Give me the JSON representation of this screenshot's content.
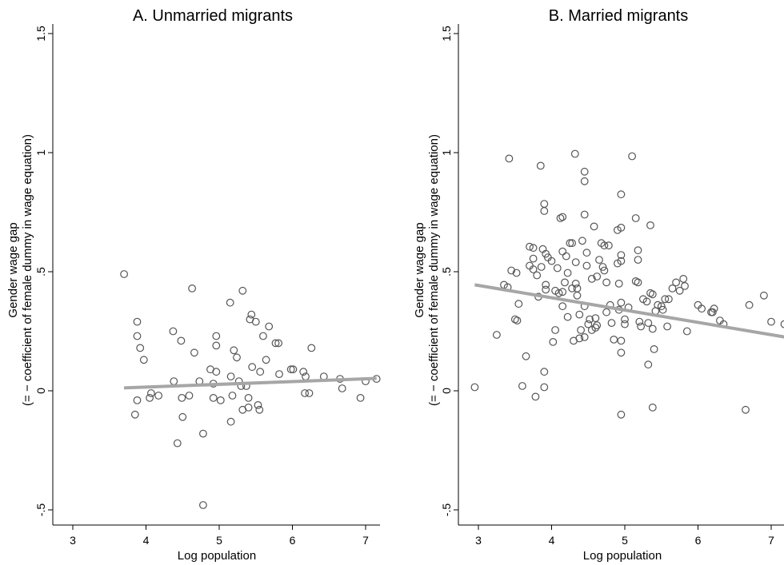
{
  "chart_data": [
    {
      "type": "scatter",
      "title": "A. Unmarried migrants",
      "xlabel": "Log population",
      "ylabel_line1": "Gender wage gap",
      "ylabel_line2": "(= − coefficient of female dummy in wage equation)",
      "xlim": [
        2.75,
        7.2
      ],
      "ylim": [
        -0.55,
        1.55
      ],
      "xticks": [
        3,
        4,
        5,
        6,
        7
      ],
      "yticks": [
        -0.5,
        0,
        0.5,
        1,
        1.5
      ],
      "ytick_labels": [
        "-.5",
        "0",
        ".5",
        "1",
        "1.5"
      ],
      "fit_line": {
        "x": [
          3.7,
          7.15
        ],
        "y": [
          0.012,
          0.052
        ]
      },
      "points": [
        [
          3.7,
          0.49
        ],
        [
          3.85,
          -0.1
        ],
        [
          3.88,
          0.29
        ],
        [
          3.88,
          0.23
        ],
        [
          3.92,
          0.18
        ],
        [
          3.97,
          0.13
        ],
        [
          3.88,
          -0.04
        ],
        [
          4.05,
          -0.03
        ],
        [
          4.07,
          -0.01
        ],
        [
          4.17,
          -0.02
        ],
        [
          4.37,
          0.25
        ],
        [
          4.38,
          0.04
        ],
        [
          4.43,
          -0.22
        ],
        [
          4.48,
          0.21
        ],
        [
          4.49,
          -0.03
        ],
        [
          4.5,
          -0.11
        ],
        [
          4.59,
          -0.02
        ],
        [
          4.63,
          0.43
        ],
        [
          4.66,
          0.16
        ],
        [
          4.73,
          0.04
        ],
        [
          4.78,
          -0.18
        ],
        [
          4.78,
          -0.48
        ],
        [
          4.88,
          0.09
        ],
        [
          4.92,
          0.03
        ],
        [
          4.92,
          -0.03
        ],
        [
          4.96,
          0.23
        ],
        [
          4.96,
          0.19
        ],
        [
          4.96,
          0.08
        ],
        [
          5.02,
          -0.04
        ],
        [
          5.15,
          0.37
        ],
        [
          5.16,
          0.06
        ],
        [
          5.16,
          -0.13
        ],
        [
          5.18,
          -0.02
        ],
        [
          5.2,
          0.17
        ],
        [
          5.24,
          0.14
        ],
        [
          5.27,
          0.04
        ],
        [
          5.32,
          0.42
        ],
        [
          5.3,
          0.02
        ],
        [
          5.32,
          -0.08
        ],
        [
          5.37,
          0.02
        ],
        [
          5.4,
          -0.07
        ],
        [
          5.4,
          -0.03
        ],
        [
          5.42,
          0.3
        ],
        [
          5.44,
          0.32
        ],
        [
          5.45,
          0.1
        ],
        [
          5.5,
          0.29
        ],
        [
          5.53,
          -0.06
        ],
        [
          5.55,
          -0.08
        ],
        [
          5.56,
          0.08
        ],
        [
          5.6,
          0.23
        ],
        [
          5.64,
          0.13
        ],
        [
          5.68,
          0.27
        ],
        [
          5.77,
          0.2
        ],
        [
          5.81,
          0.2
        ],
        [
          5.82,
          0.07
        ],
        [
          5.98,
          0.09
        ],
        [
          6.01,
          0.09
        ],
        [
          6.15,
          0.08
        ],
        [
          6.17,
          -0.01
        ],
        [
          6.18,
          0.06
        ],
        [
          6.23,
          -0.01
        ],
        [
          6.26,
          0.18
        ],
        [
          6.43,
          0.06
        ],
        [
          6.65,
          0.05
        ],
        [
          6.68,
          0.01
        ],
        [
          6.93,
          -0.03
        ],
        [
          7.0,
          0.04
        ],
        [
          7.15,
          0.05
        ]
      ]
    },
    {
      "type": "scatter",
      "title": "B. Married migrants",
      "xlabel": "Log population",
      "ylabel_line1": "Gender wage gap",
      "ylabel_line2": "(= − coefficient of female dummy in wage equation)",
      "xlim": [
        2.75,
        7.2
      ],
      "ylim": [
        -0.55,
        1.55
      ],
      "xticks": [
        3,
        4,
        5,
        6,
        7
      ],
      "yticks": [
        -0.5,
        0,
        0.5,
        1,
        1.5
      ],
      "ytick_labels": [
        "-.5",
        "0",
        ".5",
        "1",
        "1.5"
      ],
      "fit_line": {
        "x": [
          2.95,
          7.2
        ],
        "y": [
          0.445,
          0.225
        ]
      },
      "points": [
        [
          2.95,
          0.015
        ],
        [
          3.25,
          0.235
        ],
        [
          3.35,
          0.445
        ],
        [
          3.4,
          0.435
        ],
        [
          3.42,
          0.975
        ],
        [
          3.45,
          0.505
        ],
        [
          3.5,
          0.3
        ],
        [
          3.52,
          0.495
        ],
        [
          3.53,
          0.295
        ],
        [
          3.55,
          0.365
        ],
        [
          3.6,
          0.02
        ],
        [
          3.65,
          0.145
        ],
        [
          3.7,
          0.605
        ],
        [
          3.7,
          0.525
        ],
        [
          3.75,
          0.6
        ],
        [
          3.75,
          0.555
        ],
        [
          3.75,
          0.51
        ],
        [
          3.78,
          -0.025
        ],
        [
          3.8,
          0.485
        ],
        [
          3.82,
          0.395
        ],
        [
          3.85,
          0.945
        ],
        [
          3.86,
          0.52
        ],
        [
          3.88,
          0.595
        ],
        [
          3.9,
          0.785
        ],
        [
          3.9,
          0.755
        ],
        [
          3.92,
          0.575
        ],
        [
          3.92,
          0.445
        ],
        [
          3.92,
          0.425
        ],
        [
          3.9,
          0.08
        ],
        [
          3.9,
          0.015
        ],
        [
          3.95,
          0.56
        ],
        [
          4.0,
          0.545
        ],
        [
          4.02,
          0.205
        ],
        [
          4.05,
          0.42
        ],
        [
          4.05,
          0.255
        ],
        [
          4.08,
          0.515
        ],
        [
          4.1,
          0.41
        ],
        [
          4.12,
          0.725
        ],
        [
          4.15,
          0.73
        ],
        [
          4.15,
          0.585
        ],
        [
          4.15,
          0.415
        ],
        [
          4.15,
          0.355
        ],
        [
          4.18,
          0.455
        ],
        [
          4.2,
          0.565
        ],
        [
          4.22,
          0.495
        ],
        [
          4.22,
          0.31
        ],
        [
          4.25,
          0.62
        ],
        [
          4.28,
          0.62
        ],
        [
          4.28,
          0.43
        ],
        [
          4.3,
          0.21
        ],
        [
          4.32,
          0.995
        ],
        [
          4.33,
          0.54
        ],
        [
          4.33,
          0.45
        ],
        [
          4.35,
          0.43
        ],
        [
          4.35,
          0.4
        ],
        [
          4.38,
          0.22
        ],
        [
          4.38,
          0.32
        ],
        [
          4.4,
          0.255
        ],
        [
          4.42,
          0.63
        ],
        [
          4.45,
          0.92
        ],
        [
          4.45,
          0.88
        ],
        [
          4.45,
          0.74
        ],
        [
          4.45,
          0.355
        ],
        [
          4.45,
          0.225
        ],
        [
          4.48,
          0.58
        ],
        [
          4.48,
          0.525
        ],
        [
          4.5,
          0.28
        ],
        [
          4.52,
          0.3
        ],
        [
          4.55,
          0.47
        ],
        [
          4.55,
          0.255
        ],
        [
          4.58,
          0.69
        ],
        [
          4.6,
          0.305
        ],
        [
          4.6,
          0.265
        ],
        [
          4.62,
          0.48
        ],
        [
          4.62,
          0.275
        ],
        [
          4.65,
          0.55
        ],
        [
          4.68,
          0.62
        ],
        [
          4.7,
          0.52
        ],
        [
          4.72,
          0.61
        ],
        [
          4.72,
          0.505
        ],
        [
          4.75,
          0.455
        ],
        [
          4.75,
          0.33
        ],
        [
          4.78,
          0.61
        ],
        [
          4.8,
          0.36
        ],
        [
          4.82,
          0.285
        ],
        [
          4.85,
          0.215
        ],
        [
          4.9,
          0.675
        ],
        [
          4.9,
          0.535
        ],
        [
          4.92,
          0.45
        ],
        [
          4.92,
          0.34
        ],
        [
          4.95,
          0.825
        ],
        [
          4.95,
          0.685
        ],
        [
          4.95,
          0.57
        ],
        [
          4.95,
          0.545
        ],
        [
          4.95,
          0.37
        ],
        [
          4.95,
          0.21
        ],
        [
          4.95,
          0.16
        ],
        [
          4.95,
          -0.1
        ],
        [
          5.0,
          0.3
        ],
        [
          5.0,
          0.28
        ],
        [
          5.05,
          0.35
        ],
        [
          5.1,
          0.985
        ],
        [
          5.15,
          0.725
        ],
        [
          5.15,
          0.46
        ],
        [
          5.18,
          0.59
        ],
        [
          5.18,
          0.55
        ],
        [
          5.18,
          0.455
        ],
        [
          5.2,
          0.29
        ],
        [
          5.22,
          0.27
        ],
        [
          5.25,
          0.385
        ],
        [
          5.3,
          0.375
        ],
        [
          5.32,
          0.11
        ],
        [
          5.32,
          0.285
        ],
        [
          5.35,
          0.695
        ],
        [
          5.35,
          0.41
        ],
        [
          5.38,
          0.405
        ],
        [
          5.38,
          0.26
        ],
        [
          5.38,
          -0.07
        ],
        [
          5.4,
          0.175
        ],
        [
          5.42,
          0.335
        ],
        [
          5.45,
          0.36
        ],
        [
          5.5,
          0.355
        ],
        [
          5.52,
          0.34
        ],
        [
          5.55,
          0.385
        ],
        [
          5.58,
          0.27
        ],
        [
          5.6,
          0.385
        ],
        [
          5.65,
          0.43
        ],
        [
          5.7,
          0.455
        ],
        [
          5.75,
          0.42
        ],
        [
          5.8,
          0.47
        ],
        [
          5.82,
          0.44
        ],
        [
          5.85,
          0.25
        ],
        [
          6.0,
          0.36
        ],
        [
          6.05,
          0.345
        ],
        [
          6.18,
          0.33
        ],
        [
          6.2,
          0.33
        ],
        [
          6.22,
          0.345
        ],
        [
          6.3,
          0.295
        ],
        [
          6.35,
          0.28
        ],
        [
          6.65,
          -0.08
        ],
        [
          6.7,
          0.36
        ],
        [
          6.9,
          0.4
        ],
        [
          7.0,
          0.29
        ],
        [
          7.18,
          0.28
        ]
      ]
    }
  ]
}
